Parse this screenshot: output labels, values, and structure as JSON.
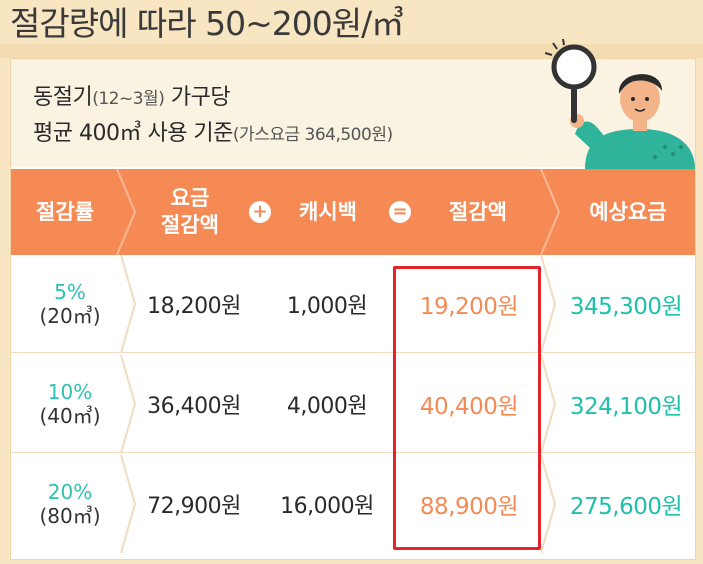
{
  "title": "절감량에 따라 50~200원/㎥",
  "info": {
    "line1_main": "동절기",
    "line1_small": "(12~3월)",
    "line1_tail": " 가구당",
    "line2_main": "평균 400㎥ 사용 기준",
    "line2_small": "(가스요금 364,500원)"
  },
  "table": {
    "headers": {
      "rate": "절감률",
      "bill_savings": "요금\n절감액",
      "cashback": "캐시백",
      "total_savings": "절감액",
      "expected_bill": "예상요금"
    },
    "operators": {
      "plus": "+",
      "equals": "="
    },
    "rows": [
      {
        "rate": "5%",
        "volume": "(20㎥)",
        "bill_savings": "18,200원",
        "cashback": "1,000원",
        "total_savings": "19,200원",
        "expected_bill": "345,300원"
      },
      {
        "rate": "10%",
        "volume": "(40㎥)",
        "bill_savings": "36,400원",
        "cashback": "4,000원",
        "total_savings": "40,400원",
        "expected_bill": "324,100원"
      },
      {
        "rate": "20%",
        "volume": "(80㎥)",
        "bill_savings": "72,900원",
        "cashback": "16,000원",
        "total_savings": "88,900원",
        "expected_bill": "275,600원"
      }
    ]
  },
  "colors": {
    "header_bg": "#f58a55",
    "accent_orange": "#f58a55",
    "accent_teal": "#1fc0ac",
    "highlight_border": "#e2252b",
    "page_bg": "#f8e6c3"
  },
  "illustration": {
    "icon": "person-with-magnifier-icon"
  }
}
